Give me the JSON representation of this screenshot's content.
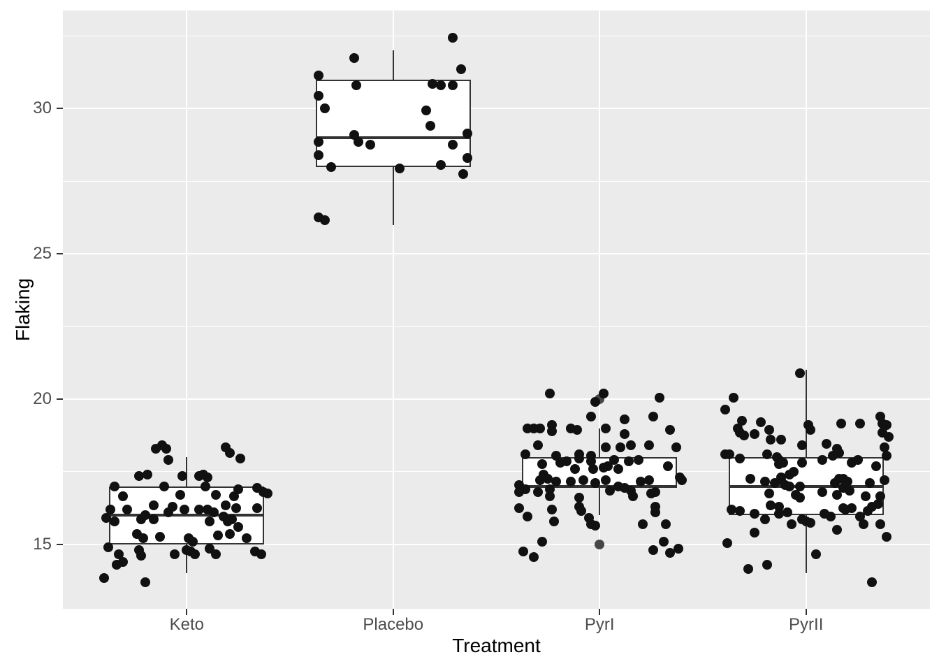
{
  "chart_data": {
    "type": "boxplot",
    "title": "",
    "xlabel": "Treatment",
    "ylabel": "Flaking",
    "categories": [
      "Keto",
      "Placebo",
      "PyrI",
      "PyrII"
    ],
    "y_ticks": [
      15,
      20,
      25,
      30
    ],
    "y_minor_ticks": [
      17.5,
      22.5,
      27.5,
      32.5
    ],
    "ylim": [
      12.78,
      33.38
    ],
    "legend": "none",
    "grid": "on",
    "box_width_units": 0.75,
    "colors": {
      "panel_background": "#EBEBEB",
      "gridline": "#FFFFFF",
      "box_border": "#333333",
      "box_fill": "#FFFFFF",
      "jitter_point": "#111111",
      "outlier_point": "#464646",
      "tick_text": "#4D4D4D",
      "axis_title_text": "#000000",
      "tick_mark": "#333333"
    },
    "boxes": [
      {
        "category": "Keto",
        "q1": 15,
        "median": 16,
        "q3": 17,
        "whisker_low": 14,
        "whisker_high": 18,
        "outliers": []
      },
      {
        "category": "Placebo",
        "q1": 28,
        "median": 29,
        "q3": 31,
        "whisker_low": 26,
        "whisker_high": 32,
        "outliers": []
      },
      {
        "category": "PyrI",
        "q1": 17,
        "median": 17,
        "q3": 18,
        "whisker_low": 16,
        "whisker_high": 19,
        "outliers": [
          15,
          20
        ]
      },
      {
        "category": "PyrII",
        "q1": 16,
        "median": 17,
        "q3": 18,
        "whisker_low": 14,
        "whisker_high": 21,
        "outliers": []
      }
    ],
    "jitter_points": {
      "Keto": [
        [
          -0.15,
          18.3
        ],
        [
          -0.12,
          18.4
        ],
        [
          -0.1,
          18.3
        ],
        [
          -0.09,
          17.9
        ],
        [
          0.19,
          18.35
        ],
        [
          0.21,
          18.15
        ],
        [
          0.26,
          17.95
        ],
        [
          -0.23,
          17.35
        ],
        [
          -0.19,
          17.4
        ],
        [
          -0.02,
          17.35
        ],
        [
          0.06,
          17.35
        ],
        [
          0.08,
          17.4
        ],
        [
          0.1,
          17.3
        ],
        [
          0.09,
          17.0
        ],
        [
          -0.35,
          17.0
        ],
        [
          -0.11,
          17.0
        ],
        [
          0.25,
          16.9
        ],
        [
          0.34,
          16.95
        ],
        [
          0.37,
          16.8
        ],
        [
          0.39,
          16.75
        ],
        [
          0.23,
          16.65
        ],
        [
          -0.31,
          16.65
        ],
        [
          -0.03,
          16.7
        ],
        [
          0.14,
          16.7
        ],
        [
          0.34,
          16.25
        ],
        [
          0.19,
          16.35
        ],
        [
          0.24,
          16.25
        ],
        [
          -0.07,
          16.3
        ],
        [
          -0.16,
          16.35
        ],
        [
          -0.37,
          16.2
        ],
        [
          -0.29,
          16.2
        ],
        [
          -0.01,
          16.2
        ],
        [
          0.06,
          16.2
        ],
        [
          0.1,
          16.2
        ],
        [
          0.13,
          16.1
        ],
        [
          0.18,
          15.95
        ],
        [
          0.22,
          15.85
        ],
        [
          0.25,
          15.6
        ],
        [
          -0.39,
          15.9
        ],
        [
          -0.35,
          15.8
        ],
        [
          -0.22,
          15.85
        ],
        [
          -0.2,
          16.0
        ],
        [
          -0.16,
          15.85
        ],
        [
          -0.09,
          16.1
        ],
        [
          0.11,
          15.8
        ],
        [
          0.2,
          15.8
        ],
        [
          -0.24,
          15.35
        ],
        [
          -0.21,
          15.2
        ],
        [
          -0.13,
          15.25
        ],
        [
          0.01,
          15.2
        ],
        [
          0.03,
          15.1
        ],
        [
          0.15,
          15.3
        ],
        [
          0.21,
          15.35
        ],
        [
          0.29,
          15.2
        ],
        [
          -0.38,
          14.9
        ],
        [
          -0.23,
          14.8
        ],
        [
          -0.33,
          14.65
        ],
        [
          -0.22,
          14.6
        ],
        [
          -0.06,
          14.65
        ],
        [
          0.0,
          14.8
        ],
        [
          0.02,
          14.75
        ],
        [
          0.04,
          14.65
        ],
        [
          0.11,
          14.85
        ],
        [
          0.14,
          14.65
        ],
        [
          0.33,
          14.75
        ],
        [
          0.36,
          14.65
        ],
        [
          -0.34,
          14.3
        ],
        [
          -0.31,
          14.4
        ],
        [
          -0.4,
          13.85
        ],
        [
          -0.2,
          13.7
        ]
      ],
      "Placebo": [
        [
          0.29,
          32.45
        ],
        [
          -0.19,
          31.75
        ],
        [
          0.33,
          31.35
        ],
        [
          -0.36,
          31.15
        ],
        [
          -0.18,
          30.8
        ],
        [
          0.19,
          30.85
        ],
        [
          0.23,
          30.8
        ],
        [
          0.29,
          30.8
        ],
        [
          -0.36,
          30.45
        ],
        [
          -0.33,
          30.0
        ],
        [
          0.16,
          29.95
        ],
        [
          0.18,
          29.4
        ],
        [
          -0.19,
          29.1
        ],
        [
          0.36,
          29.15
        ],
        [
          -0.17,
          28.85
        ],
        [
          -0.11,
          28.75
        ],
        [
          -0.36,
          28.85
        ],
        [
          0.29,
          28.75
        ],
        [
          -0.36,
          28.4
        ],
        [
          0.36,
          28.3
        ],
        [
          -0.3,
          28.0
        ],
        [
          0.23,
          28.05
        ],
        [
          0.03,
          27.95
        ],
        [
          0.34,
          27.75
        ],
        [
          -0.36,
          26.25
        ],
        [
          -0.33,
          26.15
        ]
      ],
      "PyrI": [
        [
          -0.24,
          20.2
        ],
        [
          0.02,
          20.2
        ],
        [
          -0.02,
          19.9
        ],
        [
          0.29,
          20.05
        ],
        [
          -0.04,
          19.4
        ],
        [
          0.12,
          19.3
        ],
        [
          0.26,
          19.4
        ],
        [
          -0.35,
          19.0
        ],
        [
          -0.32,
          19.0
        ],
        [
          -0.29,
          19.0
        ],
        [
          -0.23,
          19.1
        ],
        [
          -0.23,
          18.9
        ],
        [
          -0.14,
          19.0
        ],
        [
          -0.11,
          18.95
        ],
        [
          0.03,
          19.0
        ],
        [
          0.12,
          18.8
        ],
        [
          0.34,
          18.95
        ],
        [
          -0.3,
          18.4
        ],
        [
          0.03,
          18.35
        ],
        [
          0.1,
          18.35
        ],
        [
          0.15,
          18.4
        ],
        [
          0.24,
          18.4
        ],
        [
          0.37,
          18.35
        ],
        [
          -0.36,
          18.1
        ],
        [
          -0.21,
          18.05
        ],
        [
          -0.1,
          18.1
        ],
        [
          -0.1,
          17.95
        ],
        [
          -0.16,
          17.85
        ],
        [
          -0.04,
          18.05
        ],
        [
          -0.04,
          17.85
        ],
        [
          0.07,
          17.9
        ],
        [
          0.14,
          17.85
        ],
        [
          0.19,
          17.9
        ],
        [
          0.33,
          17.7
        ],
        [
          -0.19,
          17.8
        ],
        [
          -0.28,
          17.75
        ],
        [
          -0.12,
          17.6
        ],
        [
          -0.03,
          17.6
        ],
        [
          0.02,
          17.65
        ],
        [
          0.04,
          17.7
        ],
        [
          0.09,
          17.6
        ],
        [
          -0.27,
          17.4
        ],
        [
          -0.29,
          17.2
        ],
        [
          -0.25,
          17.25
        ],
        [
          -0.39,
          17.05
        ],
        [
          -0.36,
          16.9
        ],
        [
          -0.39,
          16.8
        ],
        [
          -0.3,
          16.8
        ],
        [
          -0.24,
          16.9
        ],
        [
          -0.24,
          16.65
        ],
        [
          -0.21,
          17.15
        ],
        [
          -0.14,
          17.15
        ],
        [
          -0.08,
          17.2
        ],
        [
          -0.02,
          17.1
        ],
        [
          0.03,
          17.2
        ],
        [
          0.05,
          16.85
        ],
        [
          0.09,
          17.0
        ],
        [
          0.12,
          16.95
        ],
        [
          0.15,
          16.85
        ],
        [
          0.16,
          16.65
        ],
        [
          0.2,
          17.15
        ],
        [
          0.24,
          17.2
        ],
        [
          0.25,
          16.75
        ],
        [
          0.27,
          16.8
        ],
        [
          0.39,
          17.3
        ],
        [
          0.4,
          17.2
        ],
        [
          -0.1,
          16.6
        ],
        [
          -0.1,
          16.3
        ],
        [
          -0.09,
          16.15
        ],
        [
          -0.05,
          15.9
        ],
        [
          -0.04,
          15.7
        ],
        [
          -0.02,
          15.65
        ],
        [
          -0.39,
          16.25
        ],
        [
          -0.35,
          15.95
        ],
        [
          -0.23,
          16.2
        ],
        [
          -0.22,
          15.8
        ],
        [
          0.21,
          15.7
        ],
        [
          0.27,
          16.3
        ],
        [
          0.27,
          16.1
        ],
        [
          0.32,
          15.7
        ],
        [
          -0.28,
          15.1
        ],
        [
          -0.37,
          14.75
        ],
        [
          -0.32,
          14.55
        ],
        [
          0.26,
          14.8
        ],
        [
          0.31,
          15.1
        ],
        [
          0.34,
          14.7
        ],
        [
          0.38,
          14.85
        ]
      ],
      "PyrII": [
        [
          -0.03,
          20.9
        ],
        [
          -0.35,
          20.05
        ],
        [
          -0.39,
          19.65
        ],
        [
          -0.31,
          19.25
        ],
        [
          -0.22,
          19.2
        ],
        [
          -0.33,
          19.0
        ],
        [
          -0.32,
          18.85
        ],
        [
          -0.3,
          18.75
        ],
        [
          -0.25,
          18.8
        ],
        [
          -0.18,
          18.95
        ],
        [
          -0.17,
          18.6
        ],
        [
          -0.12,
          18.6
        ],
        [
          0.01,
          19.1
        ],
        [
          0.02,
          18.95
        ],
        [
          0.17,
          19.15
        ],
        [
          0.26,
          19.15
        ],
        [
          0.36,
          19.4
        ],
        [
          0.37,
          19.15
        ],
        [
          0.39,
          19.1
        ],
        [
          0.37,
          18.85
        ],
        [
          0.4,
          18.7
        ],
        [
          -0.02,
          18.4
        ],
        [
          0.1,
          18.45
        ],
        [
          0.15,
          18.3
        ],
        [
          0.16,
          18.15
        ],
        [
          0.38,
          18.35
        ],
        [
          0.39,
          18.05
        ],
        [
          -0.39,
          18.1
        ],
        [
          -0.37,
          18.1
        ],
        [
          -0.32,
          17.95
        ],
        [
          -0.19,
          18.1
        ],
        [
          -0.14,
          18.0
        ],
        [
          -0.13,
          17.9
        ],
        [
          -0.13,
          17.75
        ],
        [
          -0.11,
          17.8
        ],
        [
          -0.02,
          17.8
        ],
        [
          0.08,
          17.9
        ],
        [
          0.13,
          18.05
        ],
        [
          0.22,
          17.8
        ],
        [
          0.25,
          17.9
        ],
        [
          0.34,
          17.7
        ],
        [
          -0.27,
          17.25
        ],
        [
          -0.2,
          17.15
        ],
        [
          -0.15,
          17.1
        ],
        [
          -0.12,
          17.3
        ],
        [
          -0.08,
          17.4
        ],
        [
          -0.06,
          17.5
        ],
        [
          -0.12,
          17.2
        ],
        [
          -0.1,
          17.05
        ],
        [
          -0.08,
          17.0
        ],
        [
          -0.03,
          17.0
        ],
        [
          0.14,
          17.1
        ],
        [
          0.16,
          17.25
        ],
        [
          0.18,
          17.25
        ],
        [
          0.2,
          17.15
        ],
        [
          0.18,
          16.95
        ],
        [
          0.31,
          17.1
        ],
        [
          0.38,
          17.2
        ],
        [
          -0.18,
          16.75
        ],
        [
          -0.05,
          16.7
        ],
        [
          -0.03,
          16.6
        ],
        [
          0.08,
          16.8
        ],
        [
          0.15,
          16.7
        ],
        [
          0.21,
          16.85
        ],
        [
          0.29,
          16.65
        ],
        [
          0.36,
          16.65
        ],
        [
          -0.17,
          16.35
        ],
        [
          -0.13,
          16.3
        ],
        [
          -0.36,
          16.2
        ],
        [
          -0.32,
          16.15
        ],
        [
          -0.25,
          16.05
        ],
        [
          -0.13,
          16.05
        ],
        [
          -0.09,
          16.1
        ],
        [
          -0.02,
          15.85
        ],
        [
          0.0,
          15.8
        ],
        [
          0.02,
          15.75
        ],
        [
          0.09,
          16.05
        ],
        [
          0.12,
          15.95
        ],
        [
          0.18,
          16.25
        ],
        [
          0.19,
          16.2
        ],
        [
          0.22,
          16.25
        ],
        [
          0.26,
          15.95
        ],
        [
          0.28,
          15.7
        ],
        [
          0.3,
          16.15
        ],
        [
          0.32,
          16.3
        ],
        [
          0.35,
          16.4
        ],
        [
          0.36,
          15.7
        ],
        [
          0.39,
          15.25
        ],
        [
          -0.2,
          15.85
        ],
        [
          -0.07,
          15.7
        ],
        [
          0.15,
          15.5
        ],
        [
          -0.25,
          15.4
        ],
        [
          -0.38,
          15.05
        ],
        [
          0.05,
          14.65
        ],
        [
          -0.28,
          14.15
        ],
        [
          -0.19,
          14.3
        ],
        [
          0.32,
          13.7
        ]
      ]
    }
  }
}
